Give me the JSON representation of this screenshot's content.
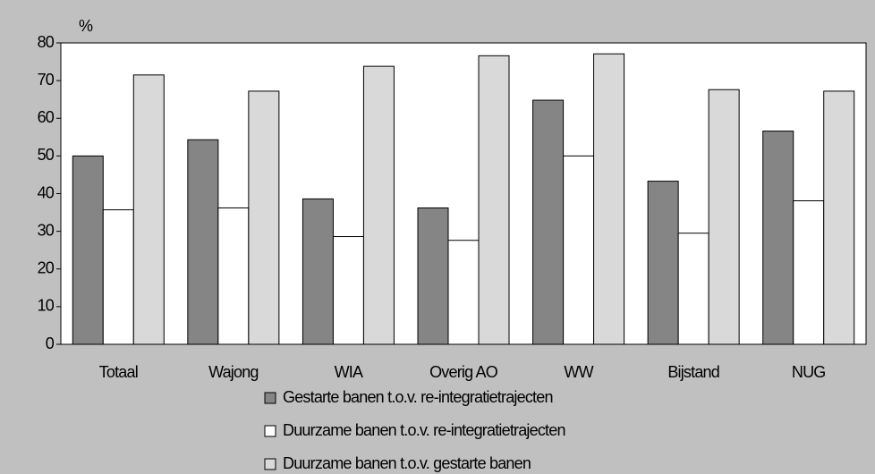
{
  "chart_data": {
    "type": "bar",
    "y_label": "%",
    "categories": [
      "Totaal",
      "Wajong",
      "WIA",
      "Overig AO",
      "WW",
      "Bijstand",
      "NUG"
    ],
    "series": [
      {
        "name": "Gestarte banen t.o.v. re-integratietrajecten",
        "color": "#858585",
        "values": [
          50,
          54.3,
          38.6,
          36.2,
          64.8,
          43.3,
          56.6
        ]
      },
      {
        "name": "Duurzame banen t.o.v. re-integratietrajecten",
        "color": "#ffffff",
        "values": [
          35.7,
          36.2,
          28.6,
          27.6,
          50,
          29.5,
          38.1
        ]
      },
      {
        "name": "Duurzame banen t.o.v. gestarte banen",
        "color": "#d9d9d9",
        "values": [
          71.5,
          67.2,
          73.8,
          76.6,
          77.1,
          67.6,
          67.2
        ]
      }
    ],
    "ylim": [
      0,
      80
    ],
    "yticks": [
      0,
      10,
      20,
      30,
      40,
      50,
      60,
      70,
      80
    ],
    "grid": false
  }
}
